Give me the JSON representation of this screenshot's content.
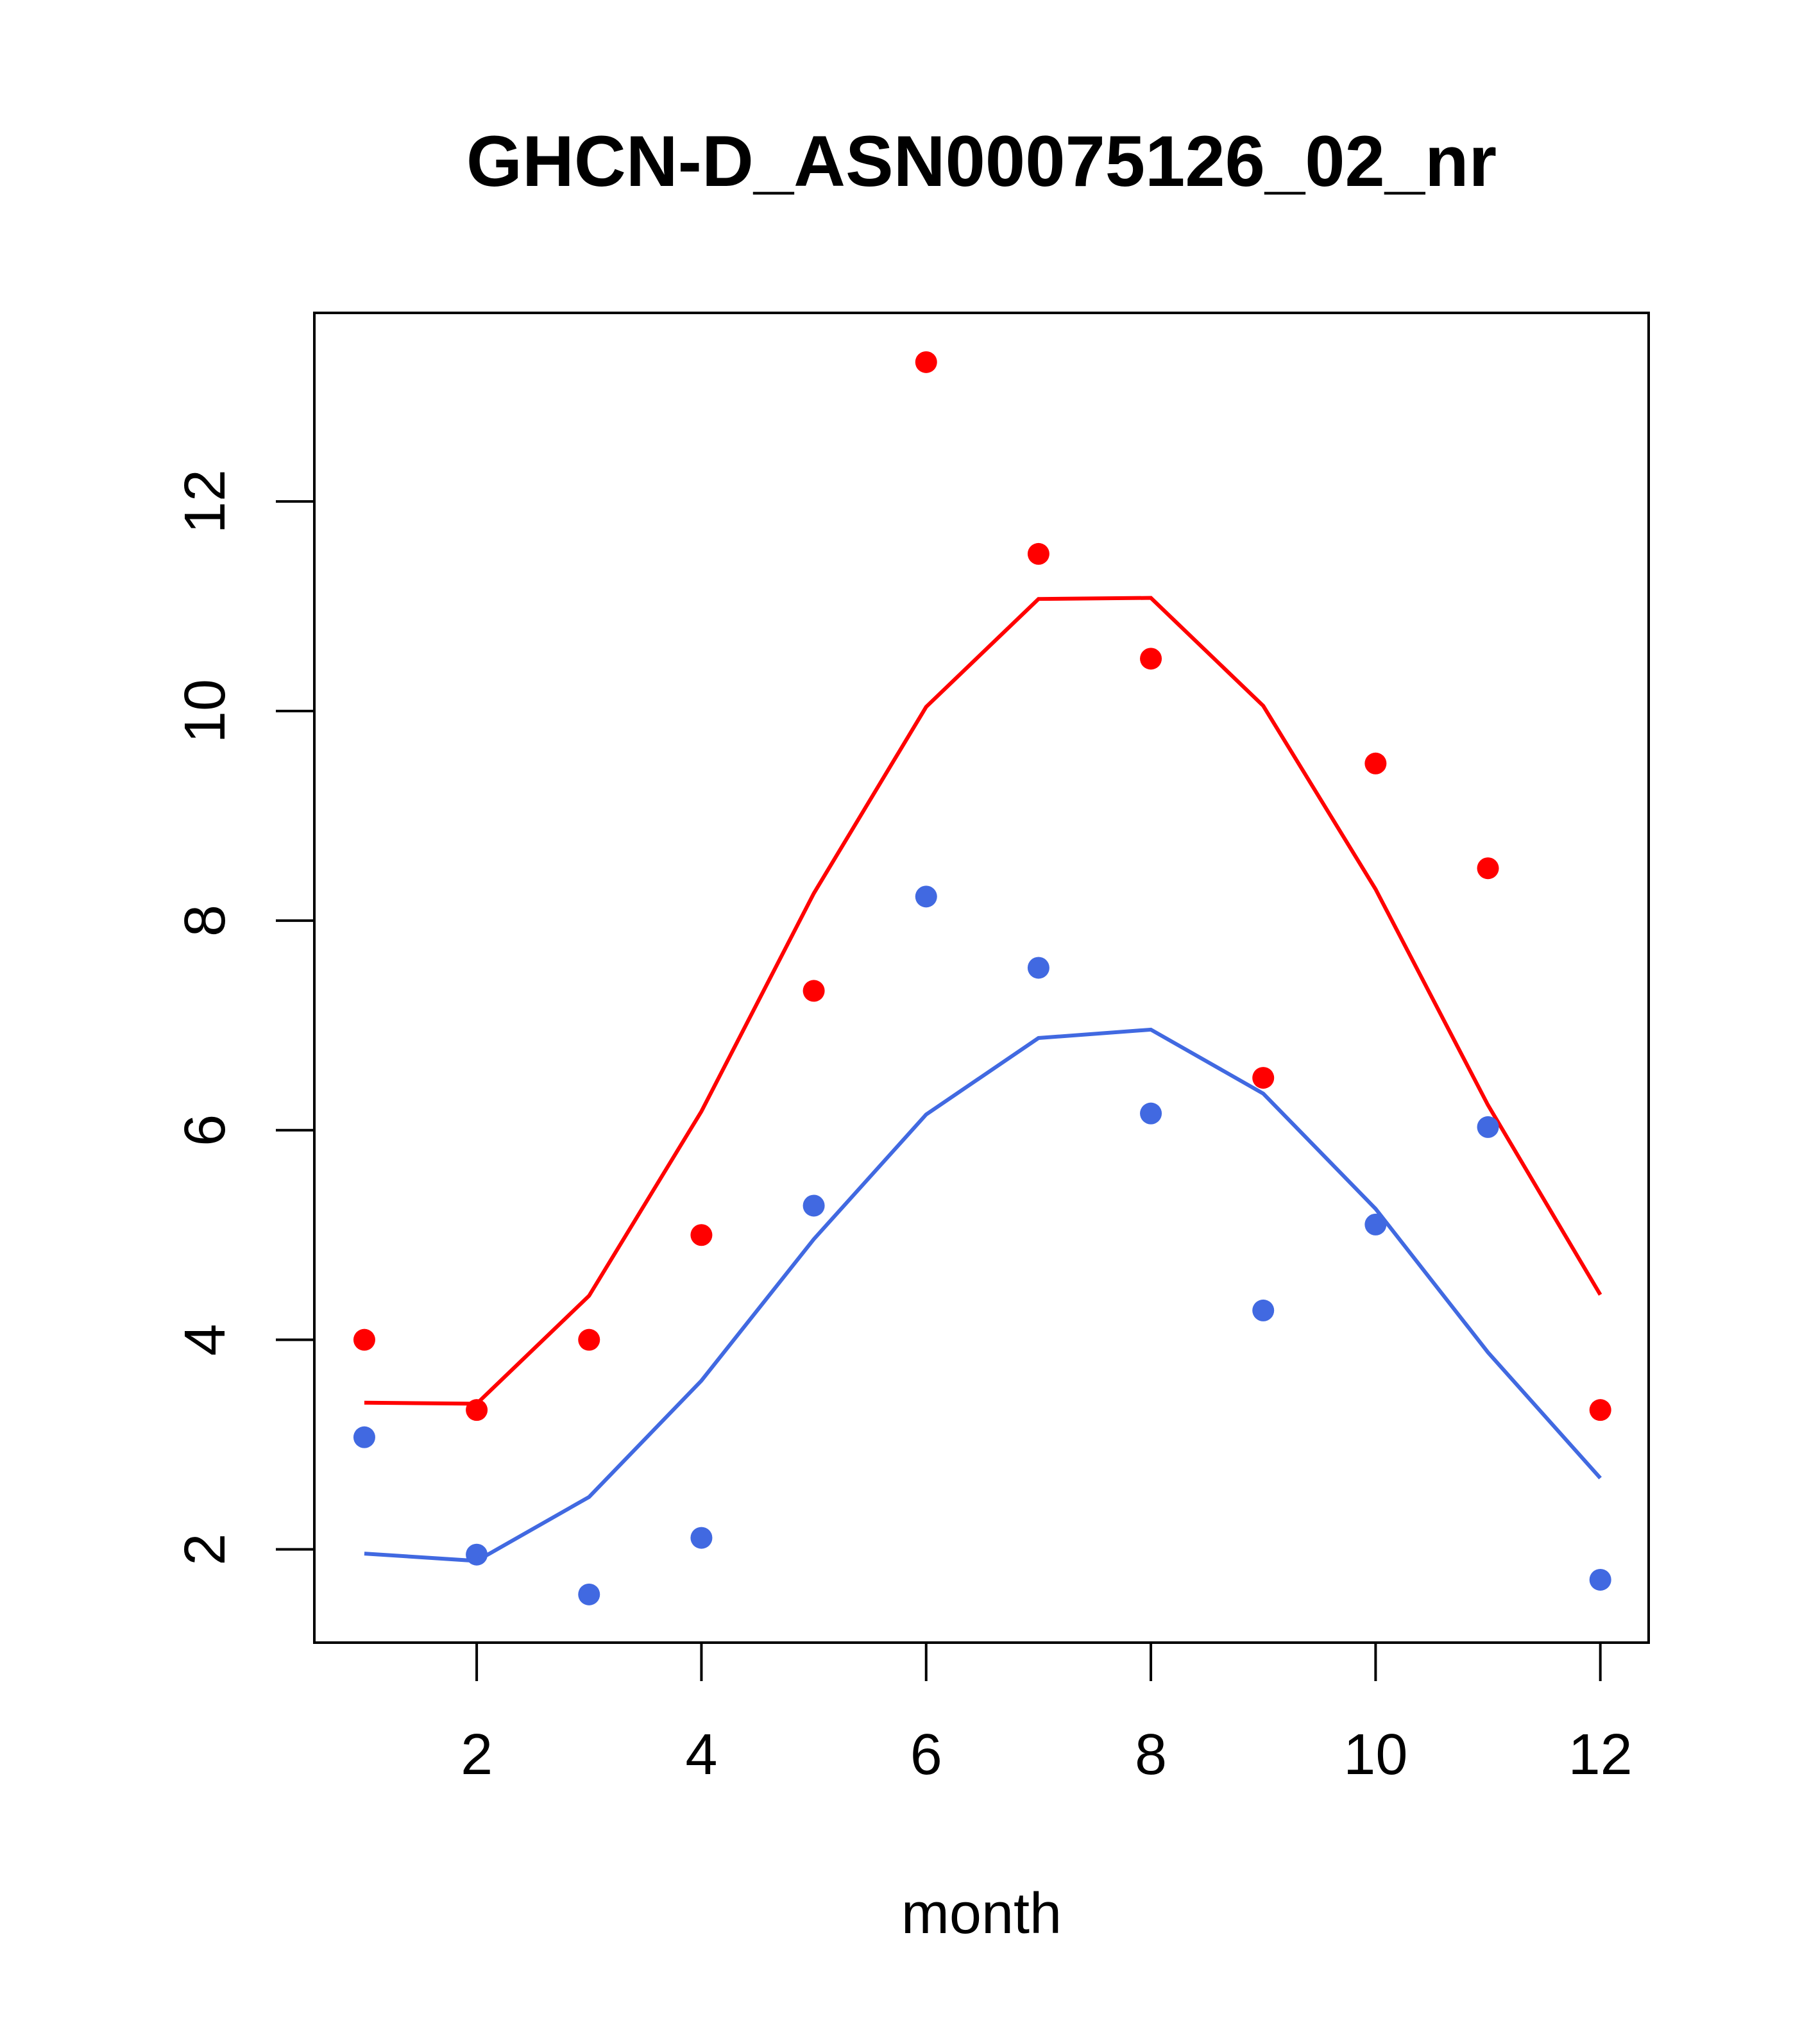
{
  "chart_data": {
    "type": "line",
    "title": "GHCN-D_ASN00075126_02_nr",
    "xlabel": "month",
    "ylabel": "",
    "xlim": [
      0.555,
      12.43
    ],
    "ylim": [
      1.11,
      13.8
    ],
    "xticks": [
      2,
      4,
      6,
      8,
      10,
      12
    ],
    "yticks": [
      2,
      4,
      6,
      8,
      10,
      12
    ],
    "grid": false,
    "x": [
      1,
      2,
      3,
      4,
      5,
      6,
      7,
      8,
      9,
      10,
      11,
      12
    ],
    "series": [
      {
        "name": "red points",
        "kind": "scatter",
        "color": "#ff0000",
        "values": [
          4.0,
          3.33,
          4.0,
          5.0,
          7.33,
          13.33,
          11.5,
          10.5,
          6.5,
          9.5,
          8.5,
          3.33
        ]
      },
      {
        "name": "red line",
        "kind": "line",
        "color": "#ff0000",
        "values": [
          3.4,
          3.39,
          4.42,
          6.18,
          8.26,
          10.04,
          11.07,
          11.08,
          10.05,
          8.3,
          6.24,
          4.43
        ]
      },
      {
        "name": "blue points",
        "kind": "scatter",
        "color": "#4169e1",
        "values": [
          3.07,
          1.95,
          1.57,
          2.11,
          5.28,
          8.23,
          7.55,
          6.16,
          4.28,
          5.1,
          6.03,
          1.71
        ]
      },
      {
        "name": "blue line",
        "kind": "line",
        "color": "#4169e1",
        "values": [
          1.96,
          1.89,
          2.5,
          3.61,
          4.96,
          6.15,
          6.88,
          6.96,
          6.35,
          5.25,
          3.88,
          2.68
        ]
      }
    ]
  }
}
